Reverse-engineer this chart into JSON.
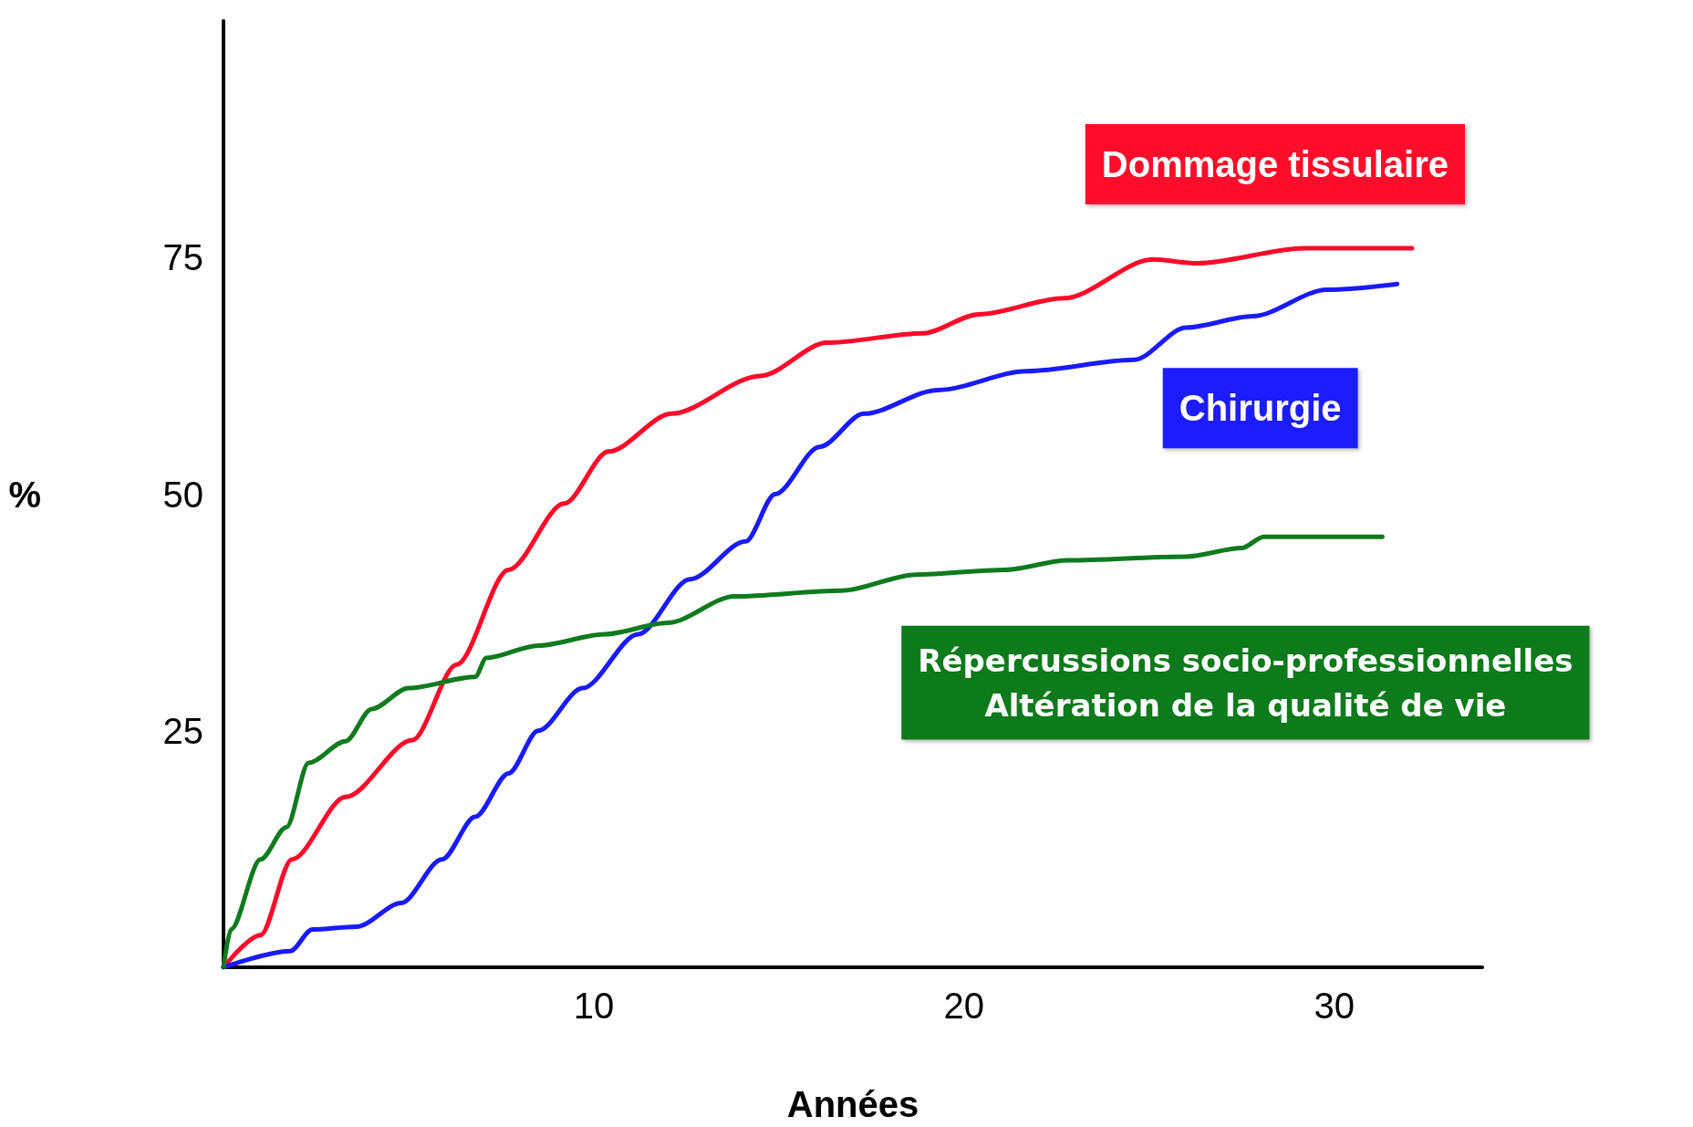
{
  "chart_data": {
    "type": "line",
    "xlabel": "Années",
    "ylabel": "%",
    "xlim": [
      0,
      34
    ],
    "ylim": [
      0,
      100
    ],
    "xticks": [
      10,
      20,
      30
    ],
    "yticks": [
      25,
      50,
      75
    ],
    "grid": false,
    "legend": false,
    "marker": "none",
    "line_style": "solid",
    "series": [
      {
        "name": "Dommage tissulaire",
        "color": "#ff0a2a",
        "x": [
          0,
          1,
          1.85,
          3.3,
          5.1,
          6.3,
          7.7,
          9.2,
          10.4,
          12.1,
          14.5,
          16.3,
          18.9,
          20.4,
          22.7,
          25.1,
          26.3,
          29.2,
          32.1
        ],
        "values": [
          0,
          3.4,
          11.4,
          18,
          24,
          32,
          42,
          49,
          54.5,
          58.5,
          62.5,
          66,
          67,
          69,
          70.7,
          74.8,
          74.4,
          76,
          76
        ]
      },
      {
        "name": "Chirurgie",
        "color": "#1a1aff",
        "x": [
          0,
          1.8,
          2.4,
          3.6,
          4.8,
          5.9,
          6.8,
          7.7,
          8.5,
          9.7,
          11.2,
          12.6,
          14.1,
          14.9,
          16.1,
          17.3,
          19.3,
          21.7,
          24.6,
          26,
          27.8,
          29.8,
          31.7
        ],
        "values": [
          0,
          1.7,
          4,
          4.3,
          6.8,
          11.4,
          15.9,
          20.5,
          25,
          29.5,
          35.2,
          41,
          45,
          50,
          55,
          58.5,
          61,
          63,
          64.2,
          67.6,
          68.8,
          71.6,
          72.2
        ]
      },
      {
        "name": "Répercussions socio-professionnelles\nAltération de la qualité de vie",
        "color": "#0f7a1e",
        "x": [
          0,
          0.2,
          1,
          1.7,
          2.3,
          3.3,
          4,
          5,
          6.8,
          7.1,
          8.5,
          10.3,
          12,
          13.8,
          16.7,
          18.7,
          21.1,
          22.8,
          26,
          27.5,
          28.1,
          31.3
        ],
        "values": [
          0,
          4,
          11.4,
          14.8,
          21.6,
          23.9,
          27.3,
          29.5,
          30.7,
          32.7,
          34,
          35.2,
          36.4,
          39.2,
          39.8,
          41.5,
          42,
          43,
          43.4,
          44.3,
          45.5,
          45.5
        ]
      }
    ]
  }
}
